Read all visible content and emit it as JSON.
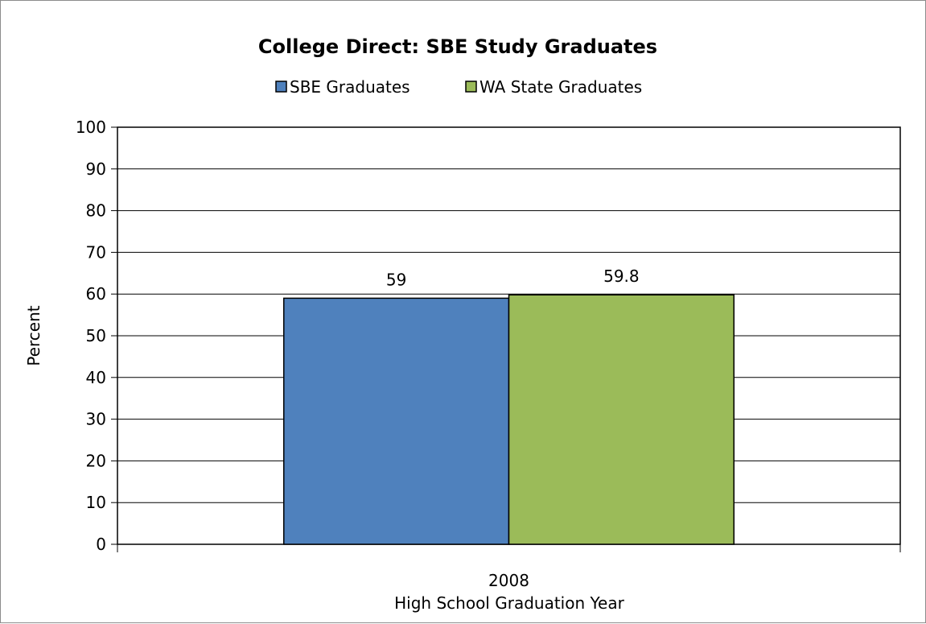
{
  "chart_data": {
    "type": "bar",
    "title": "College Direct: SBE Study Graduates",
    "xlabel": "High School Graduation Year",
    "ylabel": "Percent",
    "categories": [
      "2008"
    ],
    "series": [
      {
        "name": "SBE Graduates",
        "values": [
          59
        ],
        "color": "#4f81bd"
      },
      {
        "name": "WA State Graduates",
        "values": [
          59.8
        ],
        "color": "#9bbb59"
      }
    ],
    "ylim": [
      0,
      100
    ],
    "yticks": [
      0,
      10,
      20,
      30,
      40,
      50,
      60,
      70,
      80,
      90,
      100
    ],
    "grid": true,
    "legend_position": "top"
  }
}
